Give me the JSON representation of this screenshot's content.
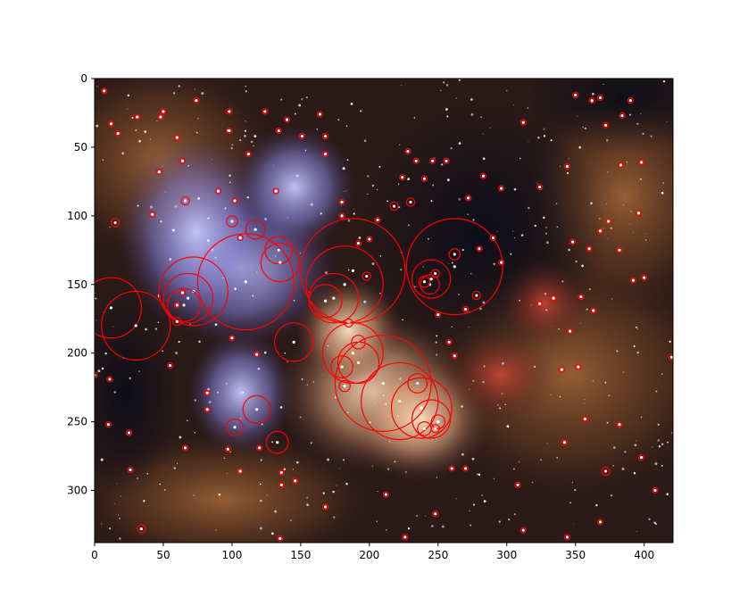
{
  "chart_data": {
    "type": "scatter",
    "title": "",
    "xlabel": "",
    "ylabel": "",
    "xlim": [
      0,
      421
    ],
    "ylim": [
      338,
      0
    ],
    "y_inverted": true,
    "background": "nebula-photo",
    "marker": "circle-outline",
    "marker_color": "#ff0000",
    "grid": false,
    "legend": "none",
    "x_ticks": [
      "0",
      "50",
      "100",
      "150",
      "200",
      "250",
      "300",
      "350",
      "400"
    ],
    "x_tick_values": [
      0,
      50,
      100,
      150,
      200,
      250,
      300,
      350,
      400
    ],
    "y_ticks": [
      "0",
      "50",
      "100",
      "150",
      "200",
      "250",
      "300"
    ],
    "y_tick_values": [
      0,
      50,
      100,
      150,
      200,
      250,
      300
    ],
    "blobs": [
      {
        "x": 7,
        "y": 9,
        "r": 2
      },
      {
        "x": 12,
        "y": 33,
        "r": 2
      },
      {
        "x": 17,
        "y": 40,
        "r": 2
      },
      {
        "x": 31,
        "y": 28,
        "r": 2
      },
      {
        "x": 48,
        "y": 28,
        "r": 2
      },
      {
        "x": 50,
        "y": 24,
        "r": 2
      },
      {
        "x": 60,
        "y": 43,
        "r": 2
      },
      {
        "x": 74,
        "y": 16,
        "r": 2
      },
      {
        "x": 98,
        "y": 24,
        "r": 2
      },
      {
        "x": 98,
        "y": 38,
        "r": 2
      },
      {
        "x": 124,
        "y": 24,
        "r": 2
      },
      {
        "x": 134,
        "y": 38,
        "r": 2
      },
      {
        "x": 140,
        "y": 30,
        "r": 2
      },
      {
        "x": 112,
        "y": 55,
        "r": 2
      },
      {
        "x": 151,
        "y": 42,
        "r": 2
      },
      {
        "x": 164,
        "y": 26,
        "r": 2
      },
      {
        "x": 168,
        "y": 42,
        "r": 2
      },
      {
        "x": 168,
        "y": 55,
        "r": 2
      },
      {
        "x": 64,
        "y": 60,
        "r": 2
      },
      {
        "x": 47,
        "y": 68,
        "r": 2
      },
      {
        "x": 90,
        "y": 82,
        "r": 2
      },
      {
        "x": 132,
        "y": 82,
        "r": 2
      },
      {
        "x": 66,
        "y": 89,
        "r": 3
      },
      {
        "x": 102,
        "y": 89,
        "r": 2
      },
      {
        "x": 42,
        "y": 99,
        "r": 2
      },
      {
        "x": 15,
        "y": 105,
        "r": 3
      },
      {
        "x": 100,
        "y": 104,
        "r": 4
      },
      {
        "x": 106,
        "y": 116,
        "r": 2
      },
      {
        "x": 117,
        "y": 110,
        "r": 7
      },
      {
        "x": 134,
        "y": 125,
        "r": 10
      },
      {
        "x": 135,
        "y": 134,
        "r": 14
      },
      {
        "x": 110,
        "y": 148,
        "r": 35
      },
      {
        "x": 72,
        "y": 155,
        "r": 25
      },
      {
        "x": 68,
        "y": 160,
        "r": 18
      },
      {
        "x": 65,
        "y": 165,
        "r": 12
      },
      {
        "x": 60,
        "y": 165,
        "r": 2
      },
      {
        "x": 60,
        "y": 177,
        "r": 3
      },
      {
        "x": 12,
        "y": 167,
        "r": 22
      },
      {
        "x": 30,
        "y": 180,
        "r": 25
      },
      {
        "x": 64,
        "y": 156,
        "r": 2
      },
      {
        "x": 100,
        "y": 189,
        "r": 2
      },
      {
        "x": 55,
        "y": 209,
        "r": 2
      },
      {
        "x": 118,
        "y": 201,
        "r": 2
      },
      {
        "x": 145,
        "y": 192,
        "r": 14
      },
      {
        "x": 188,
        "y": 140,
        "r": 38
      },
      {
        "x": 182,
        "y": 150,
        "r": 28
      },
      {
        "x": 174,
        "y": 160,
        "r": 18
      },
      {
        "x": 168,
        "y": 162,
        "r": 12
      },
      {
        "x": 180,
        "y": 90,
        "r": 2
      },
      {
        "x": 180,
        "y": 100,
        "r": 2
      },
      {
        "x": 200,
        "y": 117,
        "r": 2
      },
      {
        "x": 206,
        "y": 103,
        "r": 2
      },
      {
        "x": 192,
        "y": 120,
        "r": 2
      },
      {
        "x": 198,
        "y": 144,
        "r": 3
      },
      {
        "x": 185,
        "y": 178,
        "r": 3
      },
      {
        "x": 192,
        "y": 192,
        "r": 5
      },
      {
        "x": 188,
        "y": 200,
        "r": 22
      },
      {
        "x": 192,
        "y": 207,
        "r": 15
      },
      {
        "x": 182,
        "y": 224,
        "r": 4
      },
      {
        "x": 180,
        "y": 210,
        "r": 8
      },
      {
        "x": 210,
        "y": 222,
        "r": 35
      },
      {
        "x": 222,
        "y": 235,
        "r": 28
      },
      {
        "x": 238,
        "y": 240,
        "r": 22
      },
      {
        "x": 245,
        "y": 248,
        "r": 14
      },
      {
        "x": 250,
        "y": 250,
        "r": 5
      },
      {
        "x": 248,
        "y": 255,
        "r": 3
      },
      {
        "x": 235,
        "y": 222,
        "r": 7
      },
      {
        "x": 240,
        "y": 255,
        "r": 5
      },
      {
        "x": 262,
        "y": 137,
        "r": 35
      },
      {
        "x": 245,
        "y": 146,
        "r": 14
      },
      {
        "x": 244,
        "y": 150,
        "r": 7
      },
      {
        "x": 240,
        "y": 148,
        "r": 4
      },
      {
        "x": 248,
        "y": 142,
        "r": 3
      },
      {
        "x": 262,
        "y": 128,
        "r": 4
      },
      {
        "x": 278,
        "y": 158,
        "r": 3
      },
      {
        "x": 280,
        "y": 124,
        "r": 2
      },
      {
        "x": 290,
        "y": 116,
        "r": 2
      },
      {
        "x": 296,
        "y": 134,
        "r": 2
      },
      {
        "x": 228,
        "y": 53,
        "r": 2
      },
      {
        "x": 234,
        "y": 60,
        "r": 2
      },
      {
        "x": 246,
        "y": 60,
        "r": 2
      },
      {
        "x": 256,
        "y": 60,
        "r": 2
      },
      {
        "x": 224,
        "y": 72,
        "r": 2
      },
      {
        "x": 230,
        "y": 90,
        "r": 3
      },
      {
        "x": 240,
        "y": 73,
        "r": 2
      },
      {
        "x": 218,
        "y": 93,
        "r": 3
      },
      {
        "x": 272,
        "y": 87,
        "r": 2
      },
      {
        "x": 283,
        "y": 71,
        "r": 2
      },
      {
        "x": 296,
        "y": 80,
        "r": 2
      },
      {
        "x": 312,
        "y": 32,
        "r": 2
      },
      {
        "x": 324,
        "y": 79,
        "r": 2
      },
      {
        "x": 344,
        "y": 64,
        "r": 2
      },
      {
        "x": 348,
        "y": 119,
        "r": 2
      },
      {
        "x": 350,
        "y": 12,
        "r": 2
      },
      {
        "x": 360,
        "y": 124,
        "r": 2
      },
      {
        "x": 362,
        "y": 16,
        "r": 2
      },
      {
        "x": 368,
        "y": 14,
        "r": 2
      },
      {
        "x": 368,
        "y": 111,
        "r": 2
      },
      {
        "x": 372,
        "y": 34,
        "r": 2
      },
      {
        "x": 374,
        "y": 104,
        "r": 2
      },
      {
        "x": 383,
        "y": 63,
        "r": 2
      },
      {
        "x": 384,
        "y": 27,
        "r": 2
      },
      {
        "x": 390,
        "y": 16,
        "r": 2
      },
      {
        "x": 396,
        "y": 98,
        "r": 2
      },
      {
        "x": 398,
        "y": 61,
        "r": 2
      },
      {
        "x": 382,
        "y": 125,
        "r": 2
      },
      {
        "x": 392,
        "y": 147,
        "r": 2
      },
      {
        "x": 400,
        "y": 145,
        "r": 2
      },
      {
        "x": 324,
        "y": 164,
        "r": 2
      },
      {
        "x": 334,
        "y": 160,
        "r": 2
      },
      {
        "x": 354,
        "y": 159,
        "r": 2
      },
      {
        "x": 363,
        "y": 169,
        "r": 2
      },
      {
        "x": 346,
        "y": 184,
        "r": 2
      },
      {
        "x": 340,
        "y": 212,
        "r": 2
      },
      {
        "x": 352,
        "y": 210,
        "r": 2
      },
      {
        "x": 420,
        "y": 203,
        "r": 2
      },
      {
        "x": 357,
        "y": 248,
        "r": 2
      },
      {
        "x": 382,
        "y": 252,
        "r": 2
      },
      {
        "x": 342,
        "y": 265,
        "r": 2
      },
      {
        "x": 372,
        "y": 286,
        "r": 3
      },
      {
        "x": 398,
        "y": 276,
        "r": 2
      },
      {
        "x": 408,
        "y": 300,
        "r": 2
      },
      {
        "x": 368,
        "y": 323,
        "r": 2
      },
      {
        "x": 344,
        "y": 334,
        "r": 2
      },
      {
        "x": 312,
        "y": 329,
        "r": 2
      },
      {
        "x": 308,
        "y": 296,
        "r": 2
      },
      {
        "x": 260,
        "y": 284,
        "r": 2
      },
      {
        "x": 270,
        "y": 284,
        "r": 2
      },
      {
        "x": 248,
        "y": 317,
        "r": 2
      },
      {
        "x": 226,
        "y": 334,
        "r": 2
      },
      {
        "x": 212,
        "y": 303,
        "r": 2
      },
      {
        "x": 168,
        "y": 312,
        "r": 2
      },
      {
        "x": 146,
        "y": 293,
        "r": 2
      },
      {
        "x": 136,
        "y": 287,
        "r": 2
      },
      {
        "x": 136,
        "y": 296,
        "r": 2
      },
      {
        "x": 135,
        "y": 335,
        "r": 2
      },
      {
        "x": 133,
        "y": 265,
        "r": 8
      },
      {
        "x": 118,
        "y": 241,
        "r": 10
      },
      {
        "x": 102,
        "y": 254,
        "r": 6
      },
      {
        "x": 97,
        "y": 270,
        "r": 2
      },
      {
        "x": 106,
        "y": 286,
        "r": 2
      },
      {
        "x": 66,
        "y": 269,
        "r": 2
      },
      {
        "x": 82,
        "y": 229,
        "r": 2
      },
      {
        "x": 82,
        "y": 241,
        "r": 2
      },
      {
        "x": 11,
        "y": 219,
        "r": 2
      },
      {
        "x": 10,
        "y": 252,
        "r": 2
      },
      {
        "x": 25,
        "y": 258,
        "r": 2
      },
      {
        "x": 26,
        "y": 285,
        "r": 2
      },
      {
        "x": 34,
        "y": 328,
        "r": 3
      },
      {
        "x": 0,
        "y": 216,
        "r": 2
      },
      {
        "x": 120,
        "y": 269,
        "r": 2
      },
      {
        "x": 262,
        "y": 202,
        "r": 2
      },
      {
        "x": 258,
        "y": 192,
        "r": 2
      },
      {
        "x": 250,
        "y": 172,
        "r": 2
      },
      {
        "x": 270,
        "y": 168,
        "r": 2
      }
    ]
  }
}
